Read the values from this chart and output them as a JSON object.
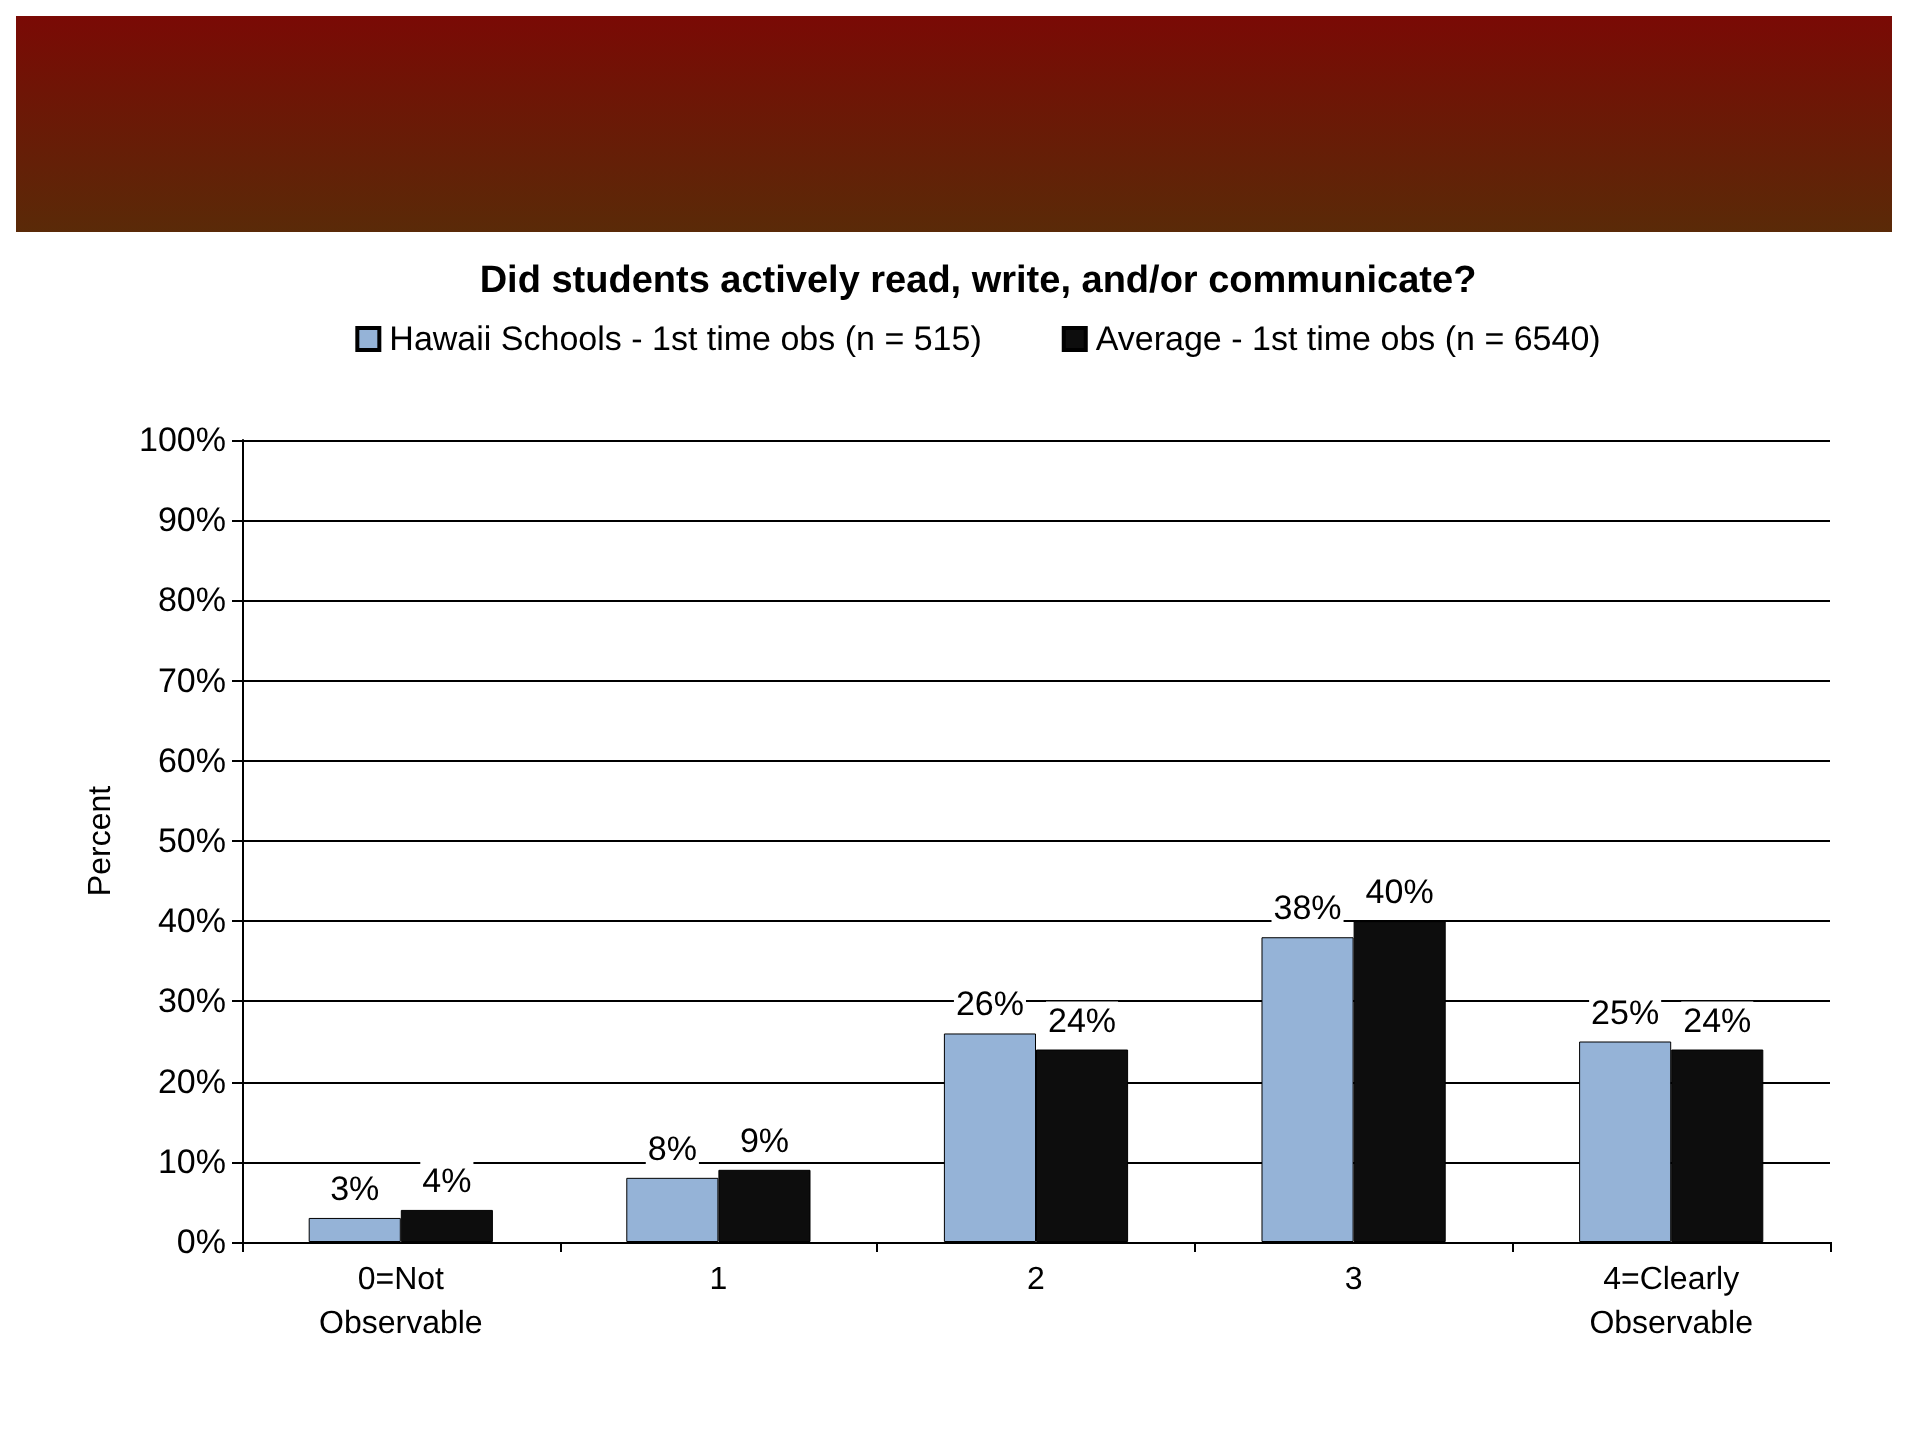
{
  "chart_data": {
    "type": "bar",
    "title": "Did students actively read, write, and/or communicate?",
    "ylabel": "Percent",
    "categories": [
      "0=Not\nObservable",
      "1",
      "2",
      "3",
      "4=Clearly\nObservable"
    ],
    "series": [
      {
        "name": "Hawaii Schools - 1st time obs (n = 515)",
        "color": "#95b3d7",
        "values": [
          3,
          8,
          26,
          38,
          25
        ],
        "value_labels": [
          "3%",
          "8%",
          "26%",
          "38%",
          "25%"
        ]
      },
      {
        "name": "Average - 1st time obs (n = 6540)",
        "color": "#0d0d0d",
        "values": [
          4,
          9,
          24,
          40,
          24
        ],
        "value_labels": [
          "4%",
          "9%",
          "24%",
          "40%",
          "24%"
        ]
      }
    ],
    "ylim": [
      0,
      100
    ],
    "yticks": [
      {
        "value": 0,
        "label": "0%"
      },
      {
        "value": 10,
        "label": "10%"
      },
      {
        "value": 20,
        "label": "20%"
      },
      {
        "value": 30,
        "label": "30%"
      },
      {
        "value": 40,
        "label": "40%"
      },
      {
        "value": 50,
        "label": "50%"
      },
      {
        "value": 60,
        "label": "60%"
      },
      {
        "value": 70,
        "label": "70%"
      },
      {
        "value": 80,
        "label": "80%"
      },
      {
        "value": 90,
        "label": "90%"
      },
      {
        "value": 100,
        "label": "100%"
      }
    ],
    "grid": "y",
    "legend": "top"
  }
}
